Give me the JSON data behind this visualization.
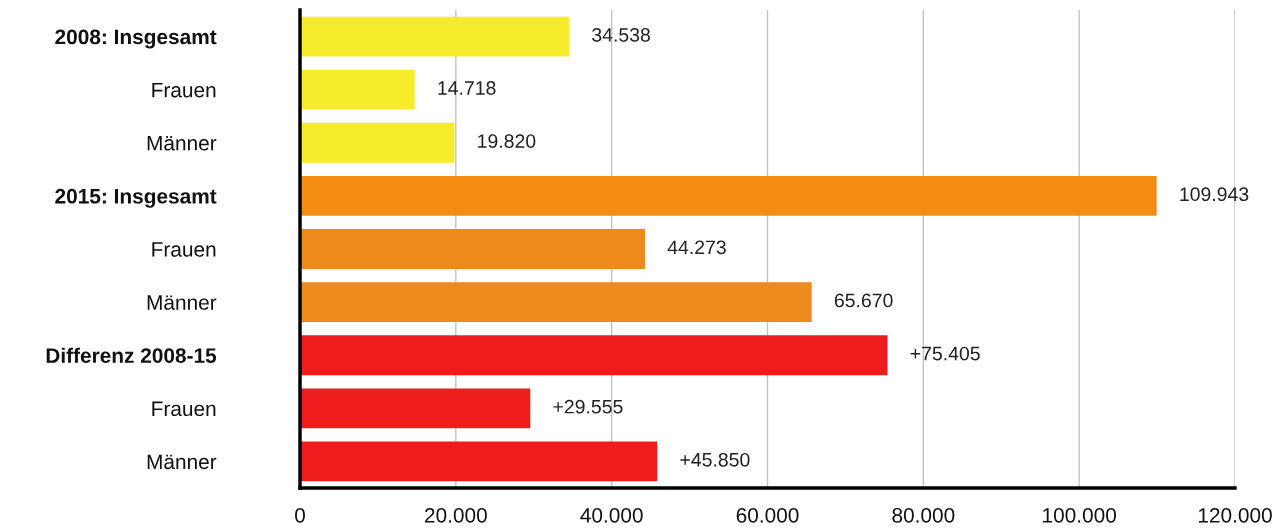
{
  "chart_data": {
    "type": "bar",
    "orientation": "horizontal",
    "categories": [
      "2008: Insgesamt",
      "Frauen",
      "Männer",
      "2015: Insgesamt",
      "Frauen",
      "Männer",
      "Differenz 2008-15",
      "Frauen",
      "Männer"
    ],
    "values": [
      34538,
      14718,
      19820,
      109943,
      44273,
      65670,
      75405,
      29555,
      45850
    ],
    "value_labels": [
      "34.538",
      "14.718",
      "19.820",
      "109.943",
      "44.273",
      "65.670",
      "+75.405",
      "+29.555",
      "+45.850"
    ],
    "colors": [
      "#f7ec2c",
      "#f7ec2c",
      "#f7ec2c",
      "#f58c12",
      "#ee8a1c",
      "#ee8a1c",
      "#ee1c1c",
      "#ee1c1c",
      "#ee1c1c"
    ],
    "xlim": [
      0,
      120000
    ],
    "xticks": [
      0,
      {
        "value": 20000,
        "label": "20.000"
      },
      {
        "value": 40000,
        "label": "40.000"
      },
      {
        "value": 60000,
        "label": "60.000"
      },
      {
        "value": 80000,
        "label": "80.000"
      },
      {
        "value": 100000,
        "label": "100.000"
      },
      {
        "value": 120000,
        "label": "120.000"
      }
    ],
    "grid": "x"
  }
}
